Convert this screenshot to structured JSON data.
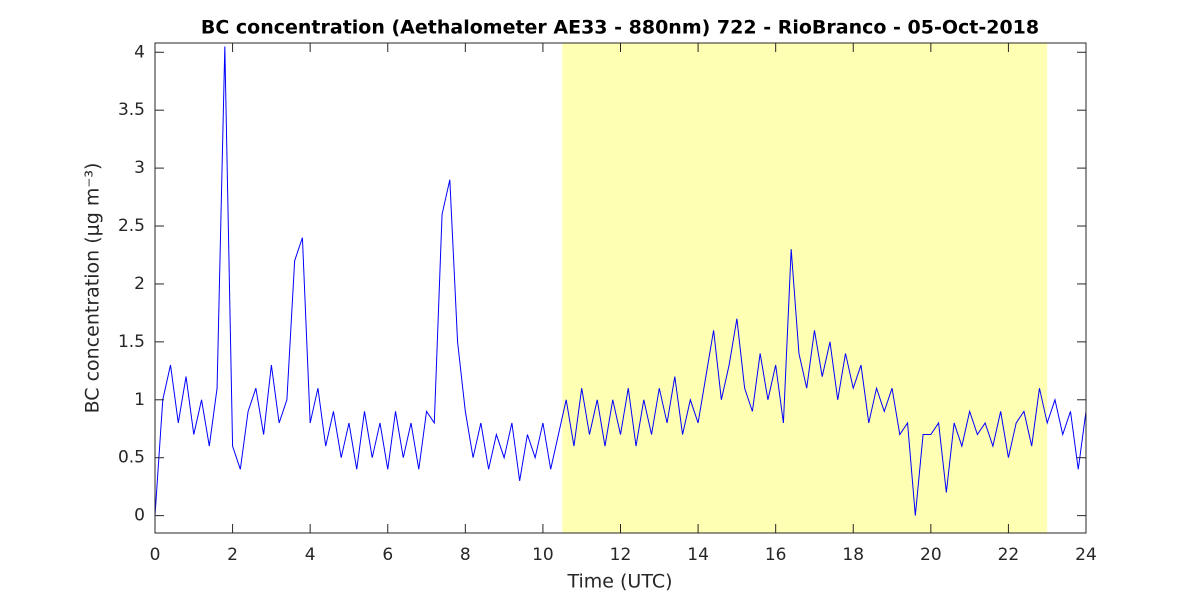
{
  "chart_data": {
    "type": "line",
    "title": "BC concentration (Aethalometer AE33 - 880nm) 722 - RioBranco - 05-Oct-2018",
    "xlabel": "Time (UTC)",
    "ylabel": "BC concentration (μg m⁻³)",
    "xlim": [
      0,
      24
    ],
    "xticks": [
      0,
      2,
      4,
      6,
      8,
      10,
      12,
      14,
      16,
      18,
      20,
      22,
      24
    ],
    "ylim": [
      -0.15,
      4.08
    ],
    "yticks": [
      0,
      0.5,
      1,
      1.5,
      2,
      2.5,
      3,
      3.5,
      4
    ],
    "shade": [
      10.5,
      23
    ],
    "shade_color": "#ffffb3",
    "series": [
      {
        "color": "#0000ff",
        "x": [
          0,
          0.2,
          0.4,
          0.6,
          0.8,
          1,
          1.2,
          1.4,
          1.6,
          1.8,
          2,
          2.2,
          2.4,
          2.6,
          2.8,
          3,
          3.2,
          3.4,
          3.6,
          3.8,
          4,
          4.2,
          4.4,
          4.6,
          4.8,
          5,
          5.2,
          5.4,
          5.6,
          5.8,
          6,
          6.2,
          6.4,
          6.6,
          6.8,
          7,
          7.2,
          7.4,
          7.6,
          7.8,
          8,
          8.2,
          8.4,
          8.6,
          8.8,
          9,
          9.2,
          9.4,
          9.6,
          9.8,
          10,
          10.2,
          10.4,
          10.6,
          10.8,
          11,
          11.2,
          11.4,
          11.6,
          11.8,
          12,
          12.2,
          12.4,
          12.6,
          12.8,
          13,
          13.2,
          13.4,
          13.6,
          13.8,
          14,
          14.2,
          14.4,
          14.6,
          14.8,
          15,
          15.2,
          15.4,
          15.6,
          15.8,
          16,
          16.2,
          16.4,
          16.6,
          16.8,
          17,
          17.2,
          17.4,
          17.6,
          17.8,
          18,
          18.2,
          18.4,
          18.6,
          18.8,
          19,
          19.2,
          19.4,
          19.6,
          19.8,
          20,
          20.2,
          20.4,
          20.6,
          20.8,
          21,
          21.2,
          21.4,
          21.6,
          21.8,
          22,
          22.2,
          22.4,
          22.6,
          22.8,
          23,
          23.2,
          23.4,
          23.6,
          23.8,
          24
        ],
        "values": [
          0,
          1.0,
          1.3,
          0.8,
          1.2,
          0.7,
          1.0,
          0.6,
          1.1,
          4.05,
          0.6,
          0.4,
          0.9,
          1.1,
          0.7,
          1.3,
          0.8,
          1.0,
          2.2,
          2.4,
          0.8,
          1.1,
          0.6,
          0.9,
          0.5,
          0.8,
          0.4,
          0.9,
          0.5,
          0.8,
          0.4,
          0.9,
          0.5,
          0.8,
          0.4,
          0.9,
          0.8,
          2.6,
          2.9,
          1.5,
          0.9,
          0.5,
          0.8,
          0.4,
          0.7,
          0.5,
          0.8,
          0.3,
          0.7,
          0.5,
          0.8,
          0.4,
          0.7,
          1.0,
          0.6,
          1.1,
          0.7,
          1.0,
          0.6,
          1.0,
          0.7,
          1.1,
          0.6,
          1.0,
          0.7,
          1.1,
          0.8,
          1.2,
          0.7,
          1.0,
          0.8,
          1.2,
          1.6,
          1.0,
          1.3,
          1.7,
          1.1,
          0.9,
          1.4,
          1.0,
          1.3,
          0.8,
          2.3,
          1.4,
          1.1,
          1.6,
          1.2,
          1.5,
          1.0,
          1.4,
          1.1,
          1.3,
          0.8,
          1.1,
          0.9,
          1.1,
          0.7,
          0.8,
          0.0,
          0.7,
          0.7,
          0.8,
          0.2,
          0.8,
          0.6,
          0.9,
          0.7,
          0.8,
          0.6,
          0.9,
          0.5,
          0.8,
          0.9,
          0.6,
          1.1,
          0.8,
          1.0,
          0.7,
          0.9,
          0.4,
          0.9
        ]
      }
    ]
  }
}
